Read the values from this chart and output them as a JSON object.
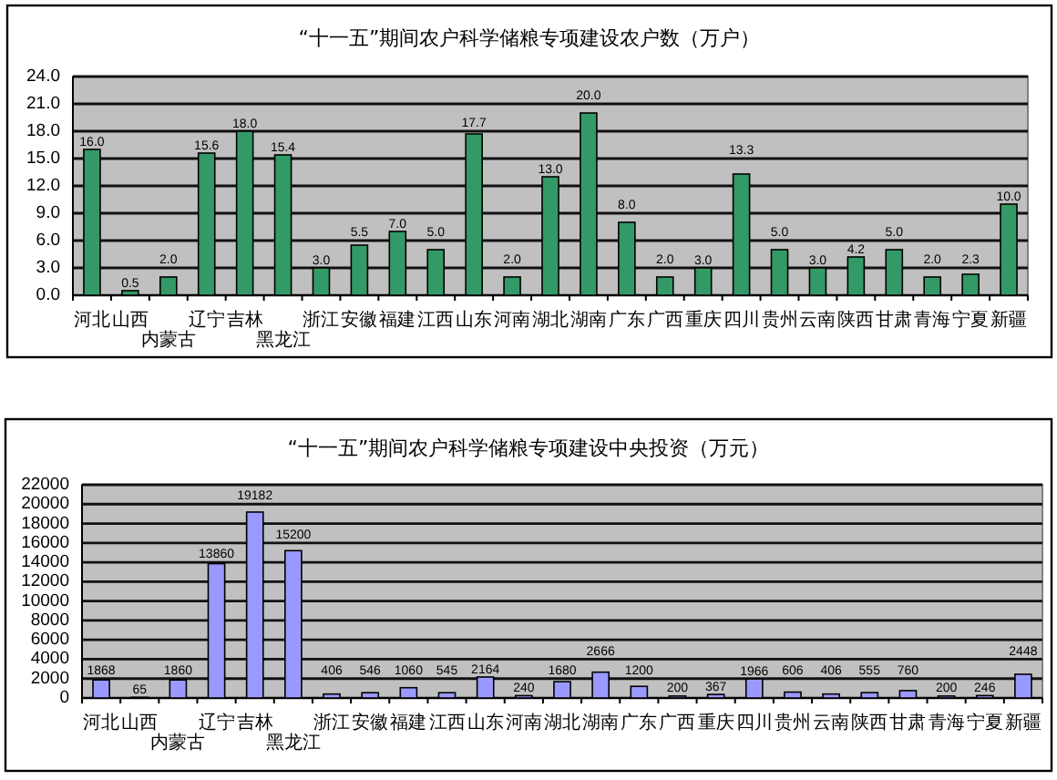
{
  "chart_data": [
    {
      "type": "bar",
      "title": "“十一五”期间农户科学储粮专项建设农户数（万户）",
      "categories": [
        "河北",
        "山西",
        "内蒙古",
        "辽宁",
        "吉林",
        "黑龙江",
        "浙江",
        "安徽",
        "福建",
        "江西",
        "山东",
        "河南",
        "湖北",
        "湖南",
        "广东",
        "广西",
        "重庆",
        "四川",
        "贵州",
        "云南",
        "陕西",
        "甘肃",
        "青海",
        "宁夏",
        "新疆"
      ],
      "values": [
        16.0,
        0.5,
        2.0,
        15.6,
        18.0,
        15.4,
        3.0,
        5.5,
        7.0,
        5.0,
        17.7,
        2.0,
        13.0,
        20.0,
        8.0,
        2.0,
        3.0,
        13.3,
        5.0,
        3.0,
        4.2,
        5.0,
        2.0,
        2.3,
        10.0
      ],
      "value_labels": [
        "16.0",
        "0.5",
        "2.0",
        "15.6",
        "18.0",
        "15.4",
        "3.0",
        "5.5",
        "7.0",
        "5.0",
        "17.7",
        "2.0",
        "13.0",
        "20.0",
        "8.0",
        "2.0",
        "3.0",
        "13.3",
        "5.0",
        "3.0",
        "4.2",
        "5.0",
        "2.0",
        "2.3",
        "10.0"
      ],
      "color": "#339966",
      "ylim": [
        0,
        24
      ],
      "yticks": [
        {
          "value": 0,
          "label": "0.0"
        },
        {
          "value": 3,
          "label": "3.0"
        },
        {
          "value": 6,
          "label": "6.0"
        },
        {
          "value": 9,
          "label": "9.0"
        },
        {
          "value": 12,
          "label": "12.0"
        },
        {
          "value": 15,
          "label": "15.0"
        },
        {
          "value": 18,
          "label": "18.0"
        },
        {
          "value": 21,
          "label": "21.0"
        },
        {
          "value": 24,
          "label": "24.0"
        }
      ],
      "grid": "y"
    },
    {
      "type": "bar",
      "title": "“十一五”期间农户科学储粮专项建设中央投资（万元）",
      "categories": [
        "河北",
        "山西",
        "内蒙古",
        "辽宁",
        "吉林",
        "黑龙江",
        "浙江",
        "安徽",
        "福建",
        "江西",
        "山东",
        "河南",
        "湖北",
        "湖南",
        "广东",
        "广西",
        "重庆",
        "四川",
        "贵州",
        "云南",
        "陕西",
        "甘肃",
        "青海",
        "宁夏",
        "新疆"
      ],
      "values": [
        1868,
        65,
        1860,
        13860,
        19182,
        15200,
        406,
        546,
        1060,
        545,
        2164,
        240,
        1680,
        2666,
        1200,
        200,
        367,
        1966,
        606,
        406,
        555,
        760,
        200,
        246,
        2448
      ],
      "data_labels": true,
      "color": "#9999ff",
      "ylim": [
        0,
        22000
      ],
      "yticks": [
        0,
        2000,
        4000,
        6000,
        8000,
        10000,
        12000,
        14000,
        16000,
        18000,
        20000,
        22000
      ],
      "grid": "y"
    }
  ]
}
